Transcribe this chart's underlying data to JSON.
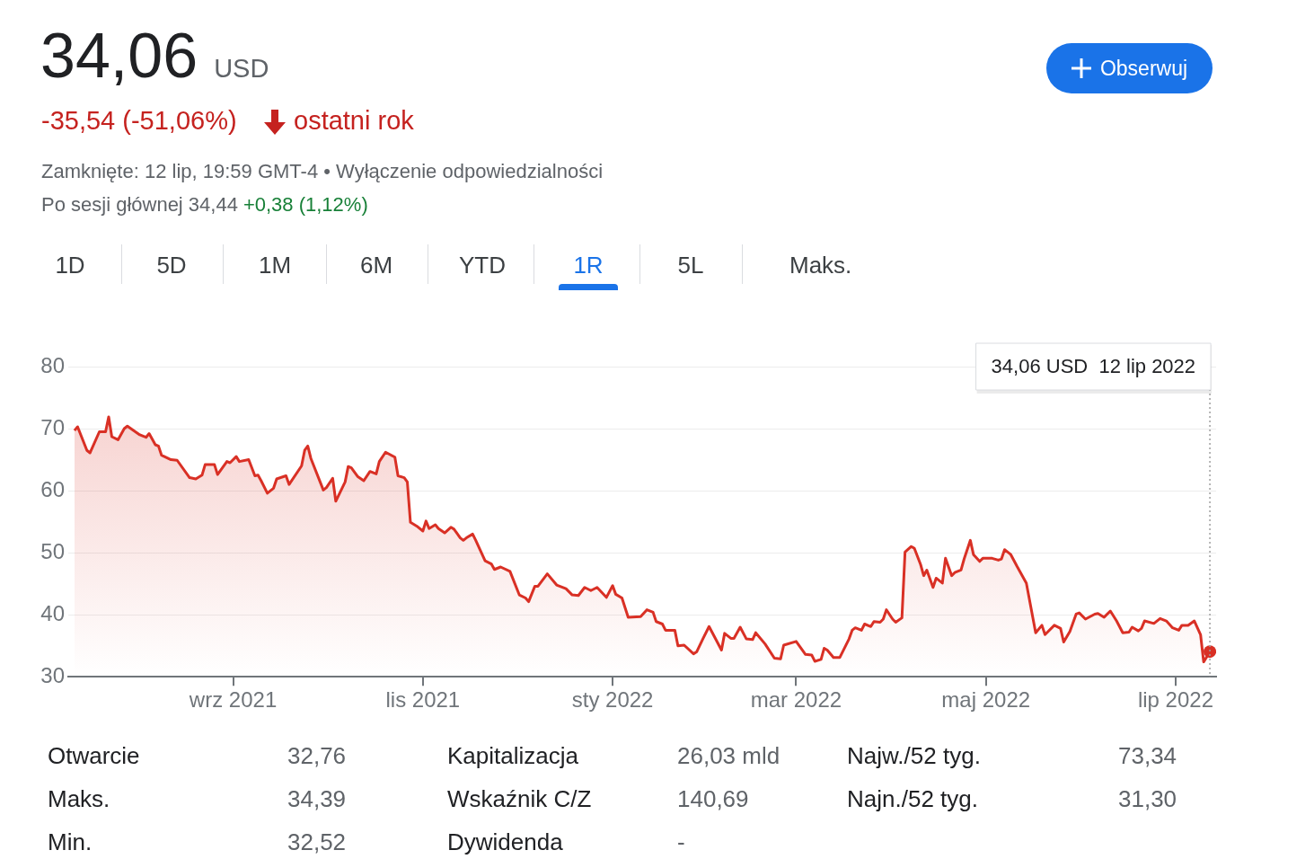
{
  "chart_data": {
    "type": "area",
    "title": "34,06 USD",
    "subtitle": "-35,54 (-51,06%)",
    "x": [
      "2021-07-12",
      "2021-07-13",
      "2021-07-16",
      "2021-07-17",
      "2021-07-20",
      "2021-07-22",
      "2021-07-23",
      "2021-07-24",
      "2021-07-26",
      "2021-07-28",
      "2021-07-29",
      "2021-08-02",
      "2021-08-04",
      "2021-08-05",
      "2021-08-07",
      "2021-08-08",
      "2021-08-09",
      "2021-08-12",
      "2021-08-14",
      "2021-08-18",
      "2021-08-20",
      "2021-08-22",
      "2021-08-23",
      "2021-08-26",
      "2021-08-27",
      "2021-08-30",
      "2021-08-31",
      "2021-09-02",
      "2021-09-03",
      "2021-09-06",
      "2021-09-08",
      "2021-09-09",
      "2021-09-10",
      "2021-09-12",
      "2021-09-14",
      "2021-09-15",
      "2021-09-18",
      "2021-09-19",
      "2021-09-23",
      "2021-09-24",
      "2021-09-25",
      "2021-09-26",
      "2021-09-30",
      "2021-10-01",
      "2021-10-03",
      "2021-10-04",
      "2021-10-07",
      "2021-10-08",
      "2021-10-09",
      "2021-10-11",
      "2021-10-13",
      "2021-10-15",
      "2021-10-17",
      "2021-10-18",
      "2021-10-20",
      "2021-10-23",
      "2021-10-24",
      "2021-10-26",
      "2021-10-27",
      "2021-10-28",
      "2021-10-30",
      "2021-11-01",
      "2021-11-02",
      "2021-11-03",
      "2021-11-05",
      "2021-11-06",
      "2021-11-08",
      "2021-11-10",
      "2021-11-11",
      "2021-11-13",
      "2021-11-14",
      "2021-11-15",
      "2021-11-17",
      "2021-11-18",
      "2021-11-21",
      "2021-11-23",
      "2021-11-24",
      "2021-11-26",
      "2021-11-29",
      "2021-12-02",
      "2021-12-04",
      "2021-12-05",
      "2021-12-07",
      "2021-12-08",
      "2021-12-11",
      "2021-12-14",
      "2021-12-17",
      "2021-12-19",
      "2021-12-21",
      "2021-12-23",
      "2021-12-25",
      "2021-12-27",
      "2021-12-30",
      "2022-01-01",
      "2022-01-02",
      "2022-01-04",
      "2022-01-06",
      "2022-01-10",
      "2022-01-12",
      "2022-01-14",
      "2022-01-15",
      "2022-01-17",
      "2022-01-18",
      "2022-01-21",
      "2022-01-22",
      "2022-01-24",
      "2022-01-27",
      "2022-01-28",
      "2022-01-30",
      "2022-02-01",
      "2022-02-05",
      "2022-02-06",
      "2022-02-08",
      "2022-02-09",
      "2022-02-11",
      "2022-02-13",
      "2022-02-15",
      "2022-02-16",
      "2022-02-19",
      "2022-02-22",
      "2022-02-24",
      "2022-02-25",
      "2022-03-01",
      "2022-03-04",
      "2022-03-06",
      "2022-03-07",
      "2022-03-09",
      "2022-03-10",
      "2022-03-11",
      "2022-03-13",
      "2022-03-15",
      "2022-03-18",
      "2022-03-19",
      "2022-03-20",
      "2022-03-22",
      "2022-03-23",
      "2022-03-25",
      "2022-03-26",
      "2022-03-28",
      "2022-03-29",
      "2022-03-30",
      "2022-04-01",
      "2022-04-02",
      "2022-04-04",
      "2022-04-05",
      "2022-04-07",
      "2022-04-08",
      "2022-04-10",
      "2022-04-11",
      "2022-04-12",
      "2022-04-14",
      "2022-04-15",
      "2022-04-17",
      "2022-04-18",
      "2022-04-20",
      "2022-04-21",
      "2022-04-23",
      "2022-04-24",
      "2022-04-26",
      "2022-04-27",
      "2022-04-29",
      "2022-04-30",
      "2022-05-03",
      "2022-05-05",
      "2022-05-06",
      "2022-05-07",
      "2022-05-09",
      "2022-05-11",
      "2022-05-12",
      "2022-05-14",
      "2022-05-17",
      "2022-05-19",
      "2022-05-20",
      "2022-05-23",
      "2022-05-25",
      "2022-05-26",
      "2022-05-28",
      "2022-05-30",
      "2022-05-31",
      "2022-06-02",
      "2022-06-05",
      "2022-06-06",
      "2022-06-08",
      "2022-06-10",
      "2022-06-12",
      "2022-06-14",
      "2022-06-16",
      "2022-06-17",
      "2022-06-19",
      "2022-06-20",
      "2022-06-21",
      "2022-06-24",
      "2022-06-26",
      "2022-06-28",
      "2022-06-30",
      "2022-07-02",
      "2022-07-03",
      "2022-07-05",
      "2022-07-07",
      "2022-07-09",
      "2022-07-10",
      "2022-07-12"
    ],
    "series": [
      {
        "color": "#d93025",
        "values": [
          69.7,
          70.3,
          66.5,
          66.1,
          69.5,
          69.5,
          71.9,
          68.7,
          68.2,
          70.0,
          70.4,
          69.0,
          68.6,
          69.2,
          67.4,
          67.2,
          65.7,
          65.0,
          64.9,
          62.1,
          61.9,
          62.5,
          64.2,
          64.2,
          62.6,
          64.7,
          64.5,
          65.5,
          64.7,
          65.0,
          62.4,
          62.5,
          61.6,
          59.6,
          60.4,
          61.9,
          62.4,
          61.0,
          64.0,
          66.5,
          67.2,
          65.2,
          60.1,
          60.5,
          62.0,
          58.3,
          61.4,
          63.9,
          63.7,
          62.3,
          61.6,
          63.1,
          62.7,
          64.7,
          66.2,
          65.4,
          62.4,
          62.1,
          61.4,
          54.9,
          54.3,
          53.5,
          55.1,
          53.9,
          54.5,
          53.9,
          53.2,
          54.1,
          53.8,
          52.4,
          52.0,
          52.4,
          53.0,
          52.0,
          48.7,
          48.2,
          47.3,
          47.7,
          47.0,
          43.2,
          42.7,
          42.1,
          44.6,
          44.6,
          46.6,
          44.8,
          44.2,
          43.2,
          43.1,
          44.4,
          43.9,
          44.4,
          42.8,
          44.7,
          43.3,
          42.7,
          39.6,
          39.7,
          40.8,
          40.4,
          38.9,
          38.5,
          37.5,
          37.5,
          35.0,
          35.1,
          33.7,
          34.0,
          36.1,
          38.1,
          34.3,
          37.0,
          36.2,
          36.2,
          38.0,
          36.1,
          36.0,
          37.1,
          35.3,
          33.0,
          32.9,
          35.1,
          35.7,
          33.6,
          33.5,
          32.5,
          32.8,
          34.6,
          34.3,
          33.1,
          33.1,
          36.1,
          37.5,
          37.9,
          37.5,
          38.5,
          38.1,
          38.9,
          38.8,
          39.3,
          40.8,
          39.3,
          38.8,
          39.5,
          50.1,
          51.0,
          50.7,
          48.1,
          46.3,
          47.2,
          44.4,
          45.9,
          45.1,
          49.1,
          46.3,
          46.8,
          47.2,
          49.0,
          52.0,
          49.7,
          48.6,
          49.1,
          49.1,
          48.8,
          49.0,
          50.5,
          49.7,
          47.8,
          46.9,
          45.1,
          37.1,
          38.3,
          36.8,
          38.3,
          37.8,
          35.6,
          37.3,
          40.1,
          40.3,
          39.3,
          40.1,
          40.2,
          39.6,
          40.6,
          39.0,
          37.1,
          37.2,
          38.0,
          37.4,
          37.8,
          39.0,
          38.6,
          39.4,
          39.0,
          37.9,
          37.5,
          38.3,
          38.3,
          39.0,
          36.8,
          32.4,
          34.06
        ]
      }
    ],
    "xlim": [
      "2021-07-10",
      "2022-07-14"
    ],
    "xticks": [
      {
        "value": "2021-09-01",
        "label": "wrz 2021"
      },
      {
        "value": "2021-11-01",
        "label": "lis 2021"
      },
      {
        "value": "2022-01-01",
        "label": "sty 2022"
      },
      {
        "value": "2022-03-01",
        "label": "mar 2022"
      },
      {
        "value": "2022-05-01",
        "label": "maj 2022"
      },
      {
        "value": "2022-07-01",
        "label": "lip 2022"
      }
    ],
    "ylim": [
      30,
      80
    ],
    "yticks": [
      30,
      40,
      50,
      60,
      70,
      80
    ],
    "grid": "y",
    "legend": false,
    "ref_lines": [
      {
        "axis": "x",
        "value": "2022-07-12",
        "color": "#9e9e9e",
        "line_style": "dotted"
      }
    ],
    "annotations": [
      "ostatni rok",
      "Zamknięte: 12 lip, 19:59 GMT-4 • Wyłączenie odpowiedzialności",
      "Po sesji głównej 34,44",
      "+0,38 (1,12%)",
      "Obserwuj",
      "1D",
      "5D",
      "1M",
      "6M",
      "YTD",
      "1R",
      "5L",
      "Maks.",
      "Otwarcie",
      "32,76",
      "Kapitalizacja",
      "26,03 mld",
      "Najw./52 tyg.",
      "73,34",
      "Maks.",
      "34,39",
      "Wskaźnik C/Z",
      "140,69",
      "Najn./52 tyg.",
      "31,30",
      "Min.",
      "32,52",
      "Dywidenda",
      "-",
      "34,06 USD  12 lip 2022"
    ]
  }
}
